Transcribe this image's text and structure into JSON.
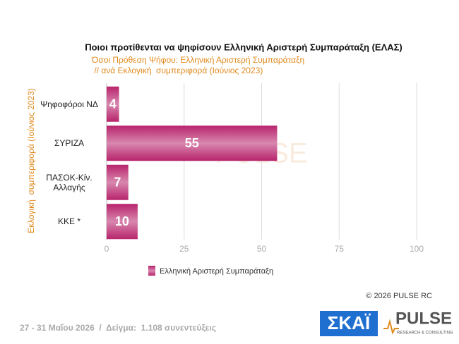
{
  "chart_data": {
    "type": "hbar",
    "title": "Ποιοι προτίθενται να ψηφίσουν Ελληνική Αριστερή Συμπαράταξη (ΕΛΑΣ)",
    "subtitle": [
      "Όσοι Πρόθεση Ψήφου: Ελληνική Αριστερή Συμπαράταξη",
      " // ανά Εκλογική  συμπεριφορά (Ιούνιος 2023)"
    ],
    "y_label": "Εκλογική  συμπεριφορά (Ιούνιος 2023)",
    "categories": [
      "Ψηφοφόροι ΝΔ",
      "ΣΥΡΙΖΑ",
      "ΠΑΣΟΚ-Κίν. Αλλαγής",
      "ΚΚΕ *"
    ],
    "series": [
      {
        "name": "Ελληνική Αριστερή Συμπαράταξη",
        "color": "#b8246c",
        "values": [
          4,
          55,
          7,
          10
        ]
      }
    ],
    "xlim": [
      0,
      100
    ],
    "xticks": [
      0,
      25,
      50,
      75,
      100
    ],
    "grid": true,
    "copyright": "© 2026  PULSE RC",
    "footer": "27 - 31 Μαΐου 2026  /  Δείγμα:  1.108 συνεντεύξεις",
    "logos": [
      "ΣΚΑΪ",
      "PULSE",
      "RESEARCH & CONSULTING"
    ]
  }
}
